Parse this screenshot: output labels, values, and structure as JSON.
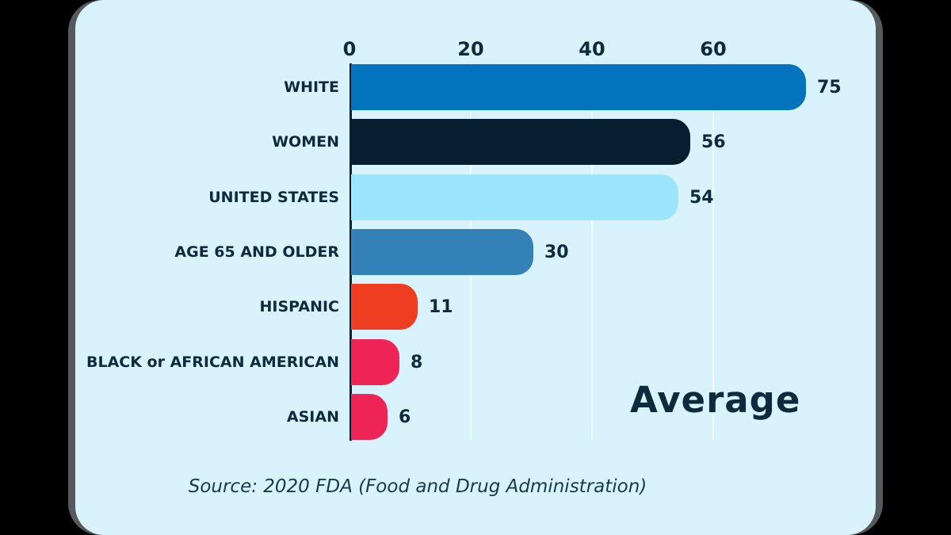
{
  "frame": {
    "outer_background": "#000000",
    "edge_color": "#565a5e",
    "panel_background": "#d9f3fd",
    "text_color": "#0e2a3d"
  },
  "chart_data": {
    "type": "bar",
    "orientation": "horizontal",
    "title": "Average",
    "categories": [
      "WHITE",
      "WOMEN",
      "UNITED STATES",
      "AGE 65 AND OLDER",
      "HISPANIC",
      "BLACK or AFRICAN AMERICAN",
      "ASIAN"
    ],
    "values": [
      75,
      56,
      54,
      30,
      11,
      8,
      6
    ],
    "bar_colors": [
      "#0273bd",
      "#051f31",
      "#9de5fd",
      "#3381b6",
      "#ee3d20",
      "#ee2456",
      "#ee2456"
    ],
    "value_labels": [
      "75",
      "56",
      "54",
      "30",
      "11",
      "8",
      "6"
    ],
    "x_ticks": [
      0,
      20,
      40,
      60
    ],
    "x_tick_labels": [
      "0",
      "20",
      "40",
      "60"
    ],
    "xlim": [
      0,
      78
    ],
    "grid": true,
    "gridline_color": "#ffffff",
    "axis_line_color": "#0b2034",
    "legend": "none"
  },
  "source_note": "Source: 2020 FDA (Food and Drug Administration)"
}
